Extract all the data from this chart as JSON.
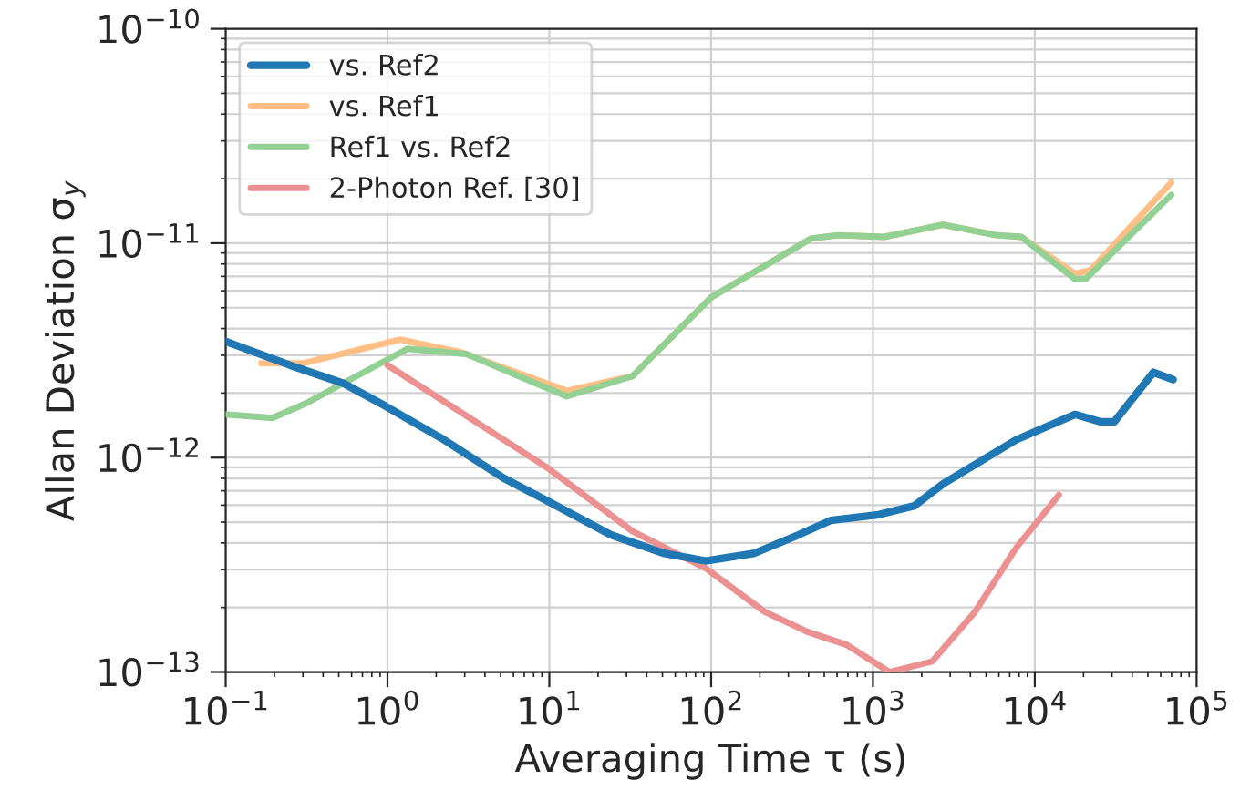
{
  "chart_data": {
    "type": "line",
    "xlabel": "Averaging Time τ (s)",
    "ylabel": "Allan Deviation σ$_{y}$",
    "log": "xy",
    "grid": true,
    "legend": "top left",
    "line_style": "solid",
    "marker": "none",
    "xlim": [
      0.1,
      100000
    ],
    "ylim": [
      1e-13,
      1e-10
    ],
    "xticks": [
      {
        "value": 0.1,
        "label": "10$^{−1}$"
      },
      {
        "value": 1,
        "label": "10$^{0}$"
      },
      {
        "value": 10,
        "label": "10$^{1}$"
      },
      {
        "value": 100,
        "label": "10$^{2}$"
      },
      {
        "value": 1000,
        "label": "10$^{3}$"
      },
      {
        "value": 10000,
        "label": "10$^{4}$"
      },
      {
        "value": 100000,
        "label": "10$^{5}$"
      }
    ],
    "yticks": [
      {
        "value": 1e-13,
        "label": "10$^{−13}$"
      },
      {
        "value": 1e-12,
        "label": "10$^{−12}$"
      },
      {
        "value": 1e-11,
        "label": "10$^{−11}$"
      },
      {
        "value": 1e-10,
        "label": "10$^{−10}$"
      }
    ],
    "series": [
      {
        "name": "vs. Ref2",
        "color": "#1f77b4",
        "x": [
          0.1,
          0.249,
          0.535,
          0.957,
          2.16,
          5.25,
          9.66,
          24.0,
          51.5,
          92.4,
          183,
          346,
          547,
          1057,
          1803,
          2706,
          7660,
          17700,
          25300,
          31000,
          54100,
          71600
        ],
        "values": [
          3.48e-12,
          2.7e-12,
          2.22e-12,
          1.75e-12,
          1.23e-12,
          8e-13,
          6.3e-13,
          4.36e-13,
          3.57e-13,
          3.3e-13,
          3.57e-13,
          4.36e-13,
          5.09e-13,
          5.4e-13,
          5.96e-13,
          7.54e-13,
          1.21e-12,
          1.59e-12,
          1.47e-12,
          1.47e-12,
          2.5e-12,
          2.31e-12
        ]
      },
      {
        "name": "vs. Ref1",
        "color": "#ffbf86",
        "x": [
          0.166,
          0.298,
          1.2,
          2.85,
          12.8,
          32.7,
          99.8,
          413,
          605,
          1170,
          2706,
          5790,
          8260,
          17700,
          22200,
          69700
        ],
        "values": [
          2.75e-12,
          2.75e-12,
          3.55e-12,
          3.1e-12,
          2.05e-12,
          2.4e-12,
          5.58e-12,
          1.05e-11,
          1.09e-11,
          1.07e-11,
          1.22e-11,
          1.09e-11,
          1.07e-11,
          7.2e-12,
          7.5e-12,
          1.92e-11
        ]
      },
      {
        "name": "Ref1 vs. Ref2",
        "color": "#93d093",
        "x": [
          0.1,
          0.194,
          0.313,
          1.33,
          3.08,
          12.8,
          32.7,
          99.8,
          413,
          605,
          1170,
          2706,
          5790,
          8260,
          17700,
          20600,
          69700
        ],
        "values": [
          1.59e-12,
          1.53e-12,
          1.79e-12,
          3.22e-12,
          3.04e-12,
          1.93e-12,
          2.4e-12,
          5.58e-12,
          1.05e-11,
          1.09e-11,
          1.07e-11,
          1.22e-11,
          1.09e-11,
          1.07e-11,
          6.8e-12,
          6.8e-12,
          1.68e-11
        ]
      },
      {
        "name": "2-Photon Ref. [30]",
        "color": "#eb9192",
        "x": [
          1.0,
          9.66,
          32.7,
          92.4,
          214,
          393,
          687,
          1262,
          2322,
          4276,
          7660,
          14100
        ],
        "values": [
          2.7e-12,
          9e-13,
          4.53e-13,
          3.05e-13,
          1.91e-13,
          1.54e-13,
          1.34e-13,
          1e-13,
          1.12e-13,
          1.91e-13,
          3.79e-13,
          6.7e-13
        ]
      }
    ]
  }
}
